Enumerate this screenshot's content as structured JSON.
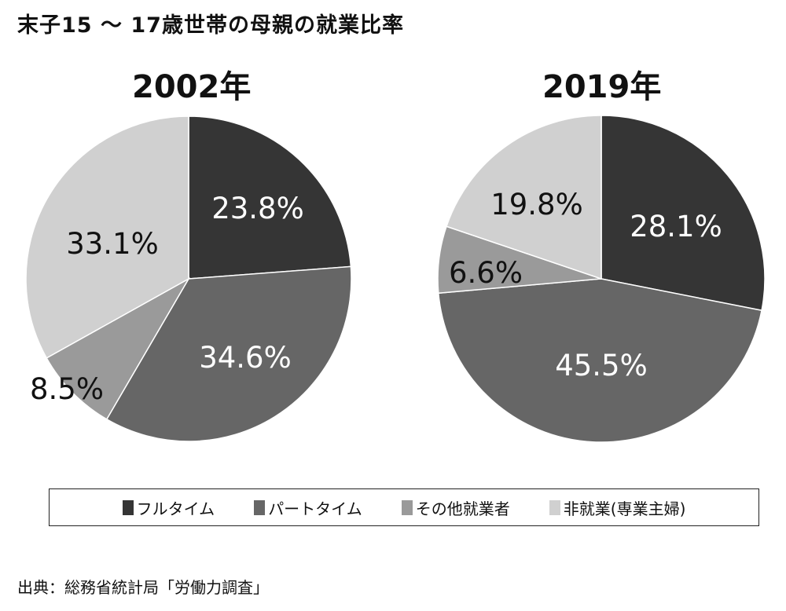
{
  "title": "末子15 ～ 17歳世帯の母親の就業比率",
  "source": "出典：総務省統計局「労働力調査」",
  "chart_data": [
    {
      "type": "pie",
      "title": "2002年",
      "categories": [
        "フルタイム",
        "パートタイム",
        "その他就業者",
        "非就業(専業主婦)"
      ],
      "values": [
        23.8,
        34.6,
        8.5,
        33.1
      ],
      "labels": [
        "23.8%",
        "34.6%",
        "8.5%",
        "33.1%"
      ]
    },
    {
      "type": "pie",
      "title": "2019年",
      "categories": [
        "フルタイム",
        "パートタイム",
        "その他就業者",
        "非就業(専業主婦)"
      ],
      "values": [
        28.1,
        45.5,
        6.6,
        19.8
      ],
      "labels": [
        "28.1%",
        "45.5%",
        "6.6%",
        "19.8%"
      ]
    }
  ],
  "legend": {
    "placement": "bottom",
    "items": [
      {
        "label": "フルタイム",
        "color": "#353535"
      },
      {
        "label": "パートタイム",
        "color": "#666666"
      },
      {
        "label": "その他就業者",
        "color": "#9a9a9a"
      },
      {
        "label": "非就業(専業主婦)",
        "color": "#d0d0d0"
      }
    ]
  }
}
